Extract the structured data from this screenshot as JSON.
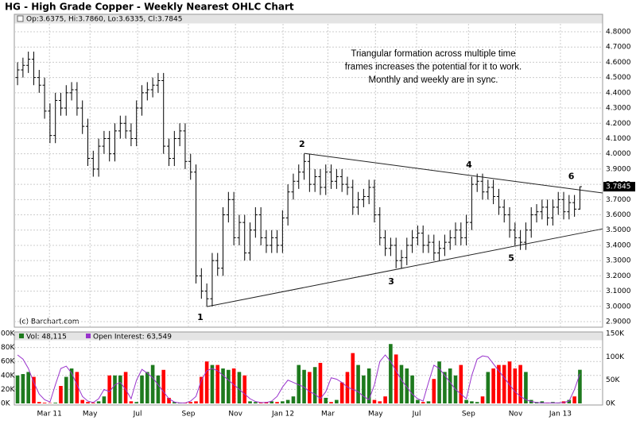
{
  "chart_data": {
    "type": "ohlc",
    "title": "HG - High Grade Copper - Weekly Nearest OHLC Chart",
    "header": "Op:3.6375, Hi:3.7860, Lo:3.6335, Cl:3.7845",
    "copyright": "(c) Barchart.com",
    "annotation": [
      "Triangular formation across multiple time",
      "frames increases the potential for it to work.",
      "Monthly and weekly are in sync."
    ],
    "color": "#000000",
    "grid": true,
    "xlim": [
      -0.6,
      108.2
    ],
    "xticks": [
      {
        "value": 5.9,
        "label": "Mar 11"
      },
      {
        "value": 13.4,
        "label": "May"
      },
      {
        "value": 22.2,
        "label": "Jul"
      },
      {
        "value": 31.6,
        "label": "Sep"
      },
      {
        "value": 40.3,
        "label": "Nov"
      },
      {
        "value": 49.1,
        "label": "Jan 12"
      },
      {
        "value": 57.4,
        "label": "Mar"
      },
      {
        "value": 66.2,
        "label": "May"
      },
      {
        "value": 73.8,
        "label": "Jul"
      },
      {
        "value": 83.4,
        "label": "Sep"
      },
      {
        "value": 92.1,
        "label": "Nov"
      },
      {
        "value": 100.4,
        "label": "Jan 13"
      }
    ],
    "ylim": [
      2.8635,
      4.9146
    ],
    "yticks": [
      {
        "value": 2.9,
        "label": "2.9000"
      },
      {
        "value": 3.0,
        "label": "3.0000"
      },
      {
        "value": 3.1,
        "label": "3.1000"
      },
      {
        "value": 3.2,
        "label": "3.2000"
      },
      {
        "value": 3.3,
        "label": "3.3000"
      },
      {
        "value": 3.4,
        "label": "3.4000"
      },
      {
        "value": 3.5,
        "label": "3.5000"
      },
      {
        "value": 3.6,
        "label": "3.6000"
      },
      {
        "value": 3.7,
        "label": "3.7000"
      },
      {
        "value": 3.8,
        "label": "3.8000"
      },
      {
        "value": 3.9,
        "label": "3.9000"
      },
      {
        "value": 4.0,
        "label": "4.0000"
      },
      {
        "value": 4.1,
        "label": "4.1000"
      },
      {
        "value": 4.2,
        "label": "4.2000"
      },
      {
        "value": 4.3,
        "label": "4.3000"
      },
      {
        "value": 4.4,
        "label": "4.4000"
      },
      {
        "value": 4.5,
        "label": "4.5000"
      },
      {
        "value": 4.6,
        "label": "4.6000"
      },
      {
        "value": 4.7,
        "label": "4.7000"
      },
      {
        "value": 4.8,
        "label": "4.8000"
      }
    ],
    "open": [
      4.5,
      4.55,
      4.58,
      4.62,
      4.5,
      4.45,
      4.28,
      4.12,
      4.35,
      4.3,
      4.4,
      4.42,
      4.3,
      4.18,
      3.97,
      3.9,
      4.05,
      4.1,
      4.0,
      4.15,
      4.2,
      4.15,
      4.1,
      4.3,
      4.4,
      4.42,
      4.45,
      4.48,
      4.05,
      3.97,
      4.1,
      4.15,
      3.95,
      3.88,
      3.2,
      3.1,
      3.05,
      3.3,
      3.25,
      3.6,
      3.7,
      3.45,
      3.55,
      3.35,
      3.5,
      3.6,
      3.45,
      3.4,
      3.45,
      3.4,
      3.58,
      3.75,
      3.82,
      3.88,
      3.95,
      3.8,
      3.85,
      3.78,
      3.88,
      3.82,
      3.85,
      3.8,
      3.78,
      3.65,
      3.7,
      3.72,
      3.78,
      3.6,
      3.45,
      3.38,
      3.4,
      3.3,
      3.32,
      3.4,
      3.45,
      3.48,
      3.4,
      3.42,
      3.35,
      3.38,
      3.42,
      3.45,
      3.5,
      3.45,
      3.55,
      3.8,
      3.82,
      3.75,
      3.78,
      3.72,
      3.65,
      3.6,
      3.5,
      3.45,
      3.42,
      3.5,
      3.6,
      3.62,
      3.65,
      3.58,
      3.65,
      3.7,
      3.62,
      3.68,
      3.6375
    ],
    "high": [
      4.6,
      4.63,
      4.67,
      4.67,
      4.55,
      4.5,
      4.33,
      4.4,
      4.4,
      4.45,
      4.47,
      4.47,
      4.35,
      4.23,
      4.02,
      4.1,
      4.15,
      4.15,
      4.2,
      4.25,
      4.25,
      4.2,
      4.35,
      4.45,
      4.47,
      4.5,
      4.53,
      4.53,
      4.1,
      4.15,
      4.2,
      4.2,
      4.0,
      3.93,
      3.25,
      3.15,
      3.35,
      3.35,
      3.65,
      3.75,
      3.75,
      3.6,
      3.6,
      3.55,
      3.65,
      3.65,
      3.5,
      3.5,
      3.5,
      3.63,
      3.8,
      3.87,
      3.93,
      4.0,
      4.0,
      3.9,
      3.9,
      3.93,
      3.93,
      3.9,
      3.9,
      3.85,
      3.83,
      3.75,
      3.77,
      3.83,
      3.83,
      3.65,
      3.5,
      3.45,
      3.45,
      3.37,
      3.45,
      3.5,
      3.53,
      3.53,
      3.47,
      3.47,
      3.43,
      3.47,
      3.5,
      3.55,
      3.55,
      3.6,
      3.85,
      3.87,
      3.87,
      3.83,
      3.83,
      3.77,
      3.7,
      3.65,
      3.55,
      3.5,
      3.55,
      3.65,
      3.67,
      3.7,
      3.7,
      3.7,
      3.75,
      3.75,
      3.73,
      3.73,
      3.786
    ],
    "low": [
      4.45,
      4.5,
      4.53,
      4.45,
      4.4,
      4.23,
      4.07,
      4.07,
      4.25,
      4.25,
      4.35,
      4.25,
      4.13,
      3.92,
      3.85,
      3.85,
      4.0,
      3.95,
      3.95,
      4.1,
      4.1,
      4.05,
      4.05,
      4.25,
      4.35,
      4.37,
      4.4,
      4.0,
      3.92,
      3.92,
      4.05,
      3.9,
      3.83,
      3.15,
      3.05,
      3.0,
      3.0,
      3.2,
      3.2,
      3.55,
      3.4,
      3.4,
      3.3,
      3.3,
      3.45,
      3.4,
      3.35,
      3.35,
      3.35,
      3.35,
      3.53,
      3.7,
      3.77,
      3.83,
      3.75,
      3.75,
      3.73,
      3.73,
      3.77,
      3.77,
      3.75,
      3.73,
      3.6,
      3.6,
      3.65,
      3.67,
      3.55,
      3.4,
      3.33,
      3.33,
      3.25,
      3.25,
      3.27,
      3.35,
      3.4,
      3.35,
      3.35,
      3.3,
      3.3,
      3.33,
      3.37,
      3.4,
      3.4,
      3.4,
      3.5,
      3.75,
      3.7,
      3.7,
      3.67,
      3.6,
      3.55,
      3.45,
      3.4,
      3.37,
      3.37,
      3.45,
      3.55,
      3.57,
      3.53,
      3.53,
      3.6,
      3.57,
      3.57,
      3.5875,
      3.6335
    ],
    "close": [
      4.55,
      4.58,
      4.62,
      4.5,
      4.45,
      4.28,
      4.12,
      4.35,
      4.3,
      4.4,
      4.42,
      4.3,
      4.18,
      3.97,
      3.9,
      4.05,
      4.1,
      4.0,
      4.15,
      4.2,
      4.15,
      4.1,
      4.3,
      4.4,
      4.42,
      4.45,
      4.48,
      4.05,
      3.97,
      4.1,
      4.15,
      3.95,
      3.88,
      3.2,
      3.1,
      3.05,
      3.3,
      3.25,
      3.6,
      3.7,
      3.45,
      3.55,
      3.35,
      3.5,
      3.6,
      3.45,
      3.4,
      3.45,
      3.4,
      3.58,
      3.75,
      3.82,
      3.88,
      3.95,
      3.8,
      3.85,
      3.78,
      3.88,
      3.82,
      3.85,
      3.8,
      3.78,
      3.65,
      3.7,
      3.72,
      3.78,
      3.6,
      3.45,
      3.38,
      3.4,
      3.3,
      3.32,
      3.4,
      3.45,
      3.48,
      3.4,
      3.42,
      3.35,
      3.38,
      3.42,
      3.45,
      3.5,
      3.45,
      3.55,
      3.8,
      3.82,
      3.75,
      3.78,
      3.72,
      3.65,
      3.6,
      3.5,
      3.45,
      3.42,
      3.5,
      3.6,
      3.62,
      3.65,
      3.58,
      3.65,
      3.7,
      3.62,
      3.68,
      3.6375,
      3.7845
    ],
    "trendlines": [
      {
        "x": [
          53,
          108.2
        ],
        "y": [
          4.003,
          3.743
        ]
      },
      {
        "x": [
          35,
          108.2
        ],
        "y": [
          2.998,
          3.508
        ]
      }
    ],
    "point_labels": [
      {
        "label": "1",
        "x": 33.8,
        "y": 2.925
      },
      {
        "label": "2",
        "x": 52.6,
        "y": 4.06
      },
      {
        "label": "3",
        "x": 69.1,
        "y": 3.16
      },
      {
        "label": "4",
        "x": 83.5,
        "y": 3.925
      },
      {
        "label": "5",
        "x": 91.3,
        "y": 3.315
      },
      {
        "label": "6",
        "x": 102.4,
        "y": 3.85
      }
    ],
    "volume": {
      "name": "Vol: 48,115",
      "up_color": "#1e7a1e",
      "down_color": "#ff0000",
      "ylim": [
        0,
        100
      ],
      "yticks": [
        {
          "value": 0,
          "label": "0K"
        },
        {
          "value": 20,
          "label": "20K"
        },
        {
          "value": 40,
          "label": "40K"
        },
        {
          "value": 60,
          "label": "60K"
        },
        {
          "value": 80,
          "label": "80K"
        },
        {
          "value": 100,
          "label": "00K"
        }
      ],
      "values": [
        40,
        42,
        45,
        38,
        2,
        1,
        0.5,
        1,
        25,
        38,
        50,
        45,
        5,
        2,
        1,
        3,
        10,
        40,
        40,
        40,
        45,
        3,
        2,
        40,
        45,
        55,
        40,
        48,
        8,
        2,
        1,
        1,
        2,
        3,
        38,
        60,
        55,
        55,
        50,
        48,
        50,
        45,
        40,
        3,
        2,
        1,
        2,
        3,
        2,
        3,
        5,
        10,
        55,
        48,
        45,
        52,
        58,
        8,
        2,
        5,
        30,
        45,
        72,
        55,
        40,
        50,
        5,
        3,
        10,
        85,
        70,
        55,
        50,
        40,
        5,
        2,
        3,
        35,
        60,
        45,
        50,
        40,
        55,
        5,
        3,
        2,
        10,
        45,
        50,
        55,
        55,
        60,
        50,
        55,
        45,
        5,
        2,
        3,
        1,
        2,
        1,
        3,
        5,
        10,
        48.115
      ]
    },
    "open_interest": {
      "name": "Open Interest: 63,549",
      "color": "#9933cc",
      "ylim": [
        0,
        150
      ],
      "yticks": [
        {
          "value": 0,
          "label": "0K"
        },
        {
          "value": 50,
          "label": "50K"
        },
        {
          "value": 100,
          "label": "100K"
        },
        {
          "value": 150,
          "label": "150K"
        }
      ],
      "values": [
        104,
        95,
        75,
        45,
        20,
        8,
        3,
        40,
        75,
        80,
        65,
        40,
        15,
        5,
        2,
        10,
        30,
        25,
        40,
        45,
        30,
        10,
        50,
        73,
        65,
        55,
        40,
        25,
        10,
        3,
        1,
        1,
        5,
        15,
        50,
        70,
        75,
        70,
        60,
        50,
        40,
        30,
        20,
        10,
        4,
        2,
        2,
        5,
        15,
        35,
        50,
        45,
        40,
        35,
        25,
        20,
        10,
        25,
        55,
        52,
        45,
        35,
        30,
        25,
        15,
        8,
        40,
        90,
        104,
        90,
        70,
        50,
        35,
        20,
        10,
        5,
        45,
        82,
        75,
        60,
        45,
        30,
        20,
        10,
        60,
        95,
        102,
        100,
        85,
        70,
        55,
        40,
        25,
        15,
        8,
        4,
        2,
        1,
        1,
        1,
        1,
        2,
        5,
        30,
        63.549
      ]
    }
  }
}
